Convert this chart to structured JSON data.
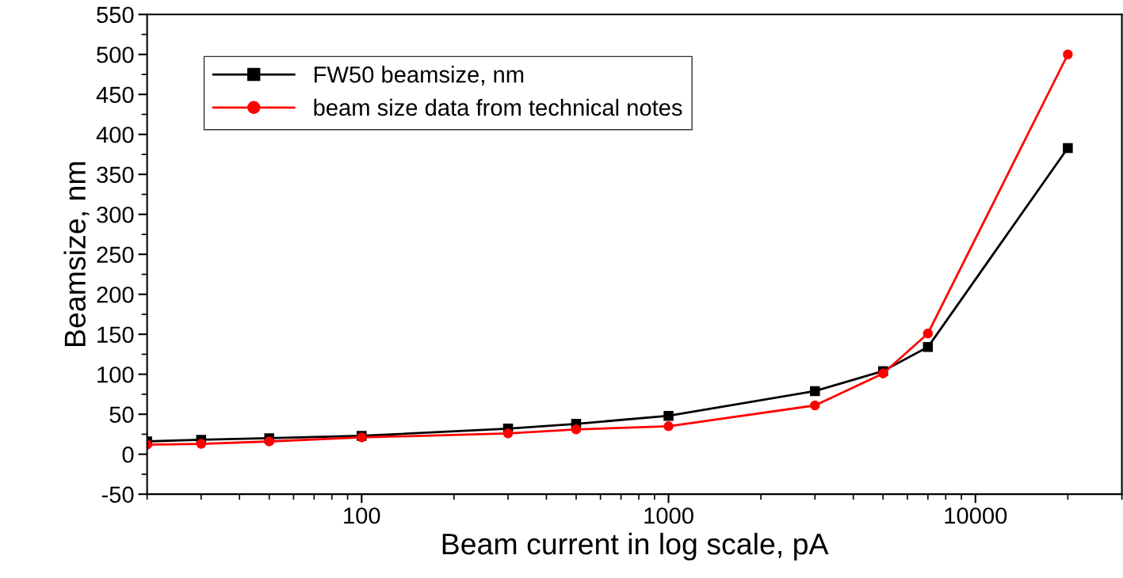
{
  "chart_data": {
    "type": "line",
    "xlabel": "Beam current in log scale, pA",
    "ylabel": "Beamsize, nm",
    "x": [
      20,
      30,
      50,
      100,
      300,
      500,
      1000,
      3000,
      5000,
      7000,
      20000
    ],
    "series": [
      {
        "name": "FW50 beamsize, nm",
        "color": "#000000",
        "marker": "square",
        "values": [
          16,
          18,
          20,
          23,
          32,
          38,
          48,
          79,
          104,
          134,
          383
        ]
      },
      {
        "name": "beam size data from technical notes",
        "color": "#ff0000",
        "marker": "circle",
        "values": [
          12,
          13,
          16,
          21,
          26,
          31,
          35,
          61,
          101,
          151,
          500
        ]
      }
    ],
    "log": "x",
    "xlim": [
      20,
      30000
    ],
    "xticks": [
      100,
      1000,
      10000
    ],
    "ylim": [
      -50,
      550
    ],
    "yticks": [
      -50,
      0,
      50,
      100,
      150,
      200,
      250,
      300,
      350,
      400,
      450,
      500,
      550
    ],
    "grid": false,
    "legend": "top left",
    "line_style": "solid"
  }
}
